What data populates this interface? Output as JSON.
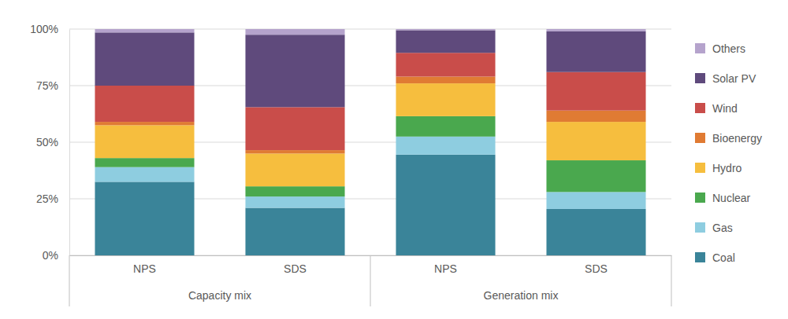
{
  "chart_data": {
    "type": "bar",
    "stacked": true,
    "grid": true,
    "legend": "right",
    "categories": [
      "NPS",
      "SDS",
      "NPS",
      "SDS"
    ],
    "category_groups": [
      "Capacity mix",
      "Capacity mix",
      "Generation mix",
      "Generation mix"
    ],
    "ylim": [
      0,
      100
    ],
    "yticks": [
      {
        "value": 0,
        "label": "0%"
      },
      {
        "value": 25,
        "label": "25%"
      },
      {
        "value": 50,
        "label": "50%"
      },
      {
        "value": 75,
        "label": "75%"
      },
      {
        "value": 100,
        "label": "100%"
      }
    ],
    "series": [
      {
        "name": "Coal",
        "color": "#3a8499",
        "values": [
          32.5,
          21,
          44.5,
          20.5
        ]
      },
      {
        "name": "Gas",
        "color": "#8ecde0",
        "values": [
          6.5,
          5,
          8,
          7.5
        ]
      },
      {
        "name": "Nuclear",
        "color": "#4aa84e",
        "values": [
          4,
          4.5,
          9,
          14
        ]
      },
      {
        "name": "Hydro",
        "color": "#f6be3e",
        "values": [
          14.5,
          14.5,
          14.5,
          17
        ]
      },
      {
        "name": "Bioenergy",
        "color": "#e07b33",
        "values": [
          1.5,
          1.5,
          3,
          5
        ]
      },
      {
        "name": "Wind",
        "color": "#c94d4a",
        "values": [
          16,
          19,
          10.5,
          17
        ]
      },
      {
        "name": "Solar PV",
        "color": "#5f4a7c",
        "values": [
          23.5,
          32,
          10,
          18
        ]
      },
      {
        "name": "Others",
        "color": "#b5a3cc",
        "values": [
          1.5,
          2.5,
          0.5,
          1
        ]
      }
    ]
  }
}
